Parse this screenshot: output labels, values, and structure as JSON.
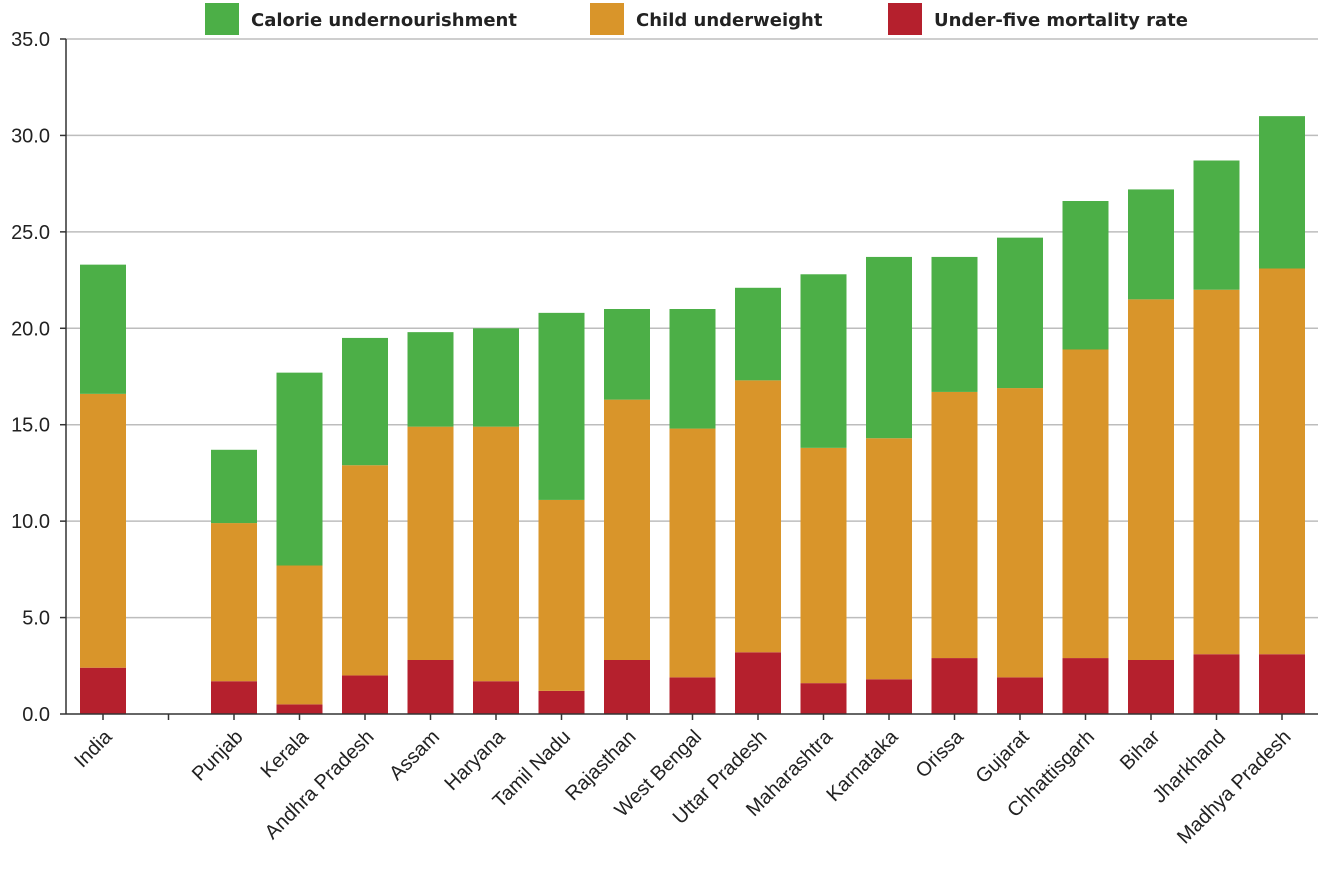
{
  "chart_data": {
    "type": "bar",
    "stacked": true,
    "categories": [
      "India",
      "",
      "Punjab",
      "Kerala",
      "Andhra Pradesh",
      "Assam",
      "Haryana",
      "Tamil Nadu",
      "Rajasthan",
      "West Bengal",
      "Uttar Pradesh",
      "Maharashtra",
      "Karnataka",
      "Orissa",
      "Gujarat",
      "Chhattisgarh",
      "Bihar",
      "Jharkhand",
      "Madhya Pradesh"
    ],
    "series": [
      {
        "name": "Under-five mortality rate",
        "color": "#b5202d",
        "values": [
          2.4,
          null,
          1.7,
          0.5,
          2.0,
          2.8,
          1.7,
          1.2,
          2.8,
          1.9,
          3.2,
          1.6,
          1.8,
          2.9,
          1.9,
          2.9,
          2.8,
          3.1,
          3.1
        ]
      },
      {
        "name": "Child underweight",
        "color": "#d9952a",
        "values": [
          14.2,
          null,
          8.2,
          7.2,
          10.9,
          12.1,
          13.2,
          9.9,
          13.5,
          12.9,
          14.1,
          12.2,
          12.5,
          13.8,
          15.0,
          16.0,
          18.7,
          18.9,
          20.0
        ]
      },
      {
        "name": "Calorie undernourishment",
        "color": "#4caf47",
        "values": [
          6.7,
          null,
          3.8,
          10.0,
          6.6,
          4.9,
          5.1,
          9.7,
          4.7,
          6.2,
          4.8,
          9.0,
          9.4,
          7.0,
          7.8,
          7.7,
          5.7,
          6.7,
          7.9
        ]
      }
    ],
    "legend_order": [
      "Calorie undernourishment",
      "Child underweight",
      "Under-five mortality rate"
    ],
    "legend_position": "top",
    "y_ticks": [
      "0.0",
      "5.0",
      "10.0",
      "15.0",
      "20.0",
      "25.0",
      "30.0",
      "35.0"
    ],
    "ylim": [
      0,
      35
    ],
    "grid": true,
    "title": "",
    "xlabel": "",
    "ylabel": ""
  }
}
